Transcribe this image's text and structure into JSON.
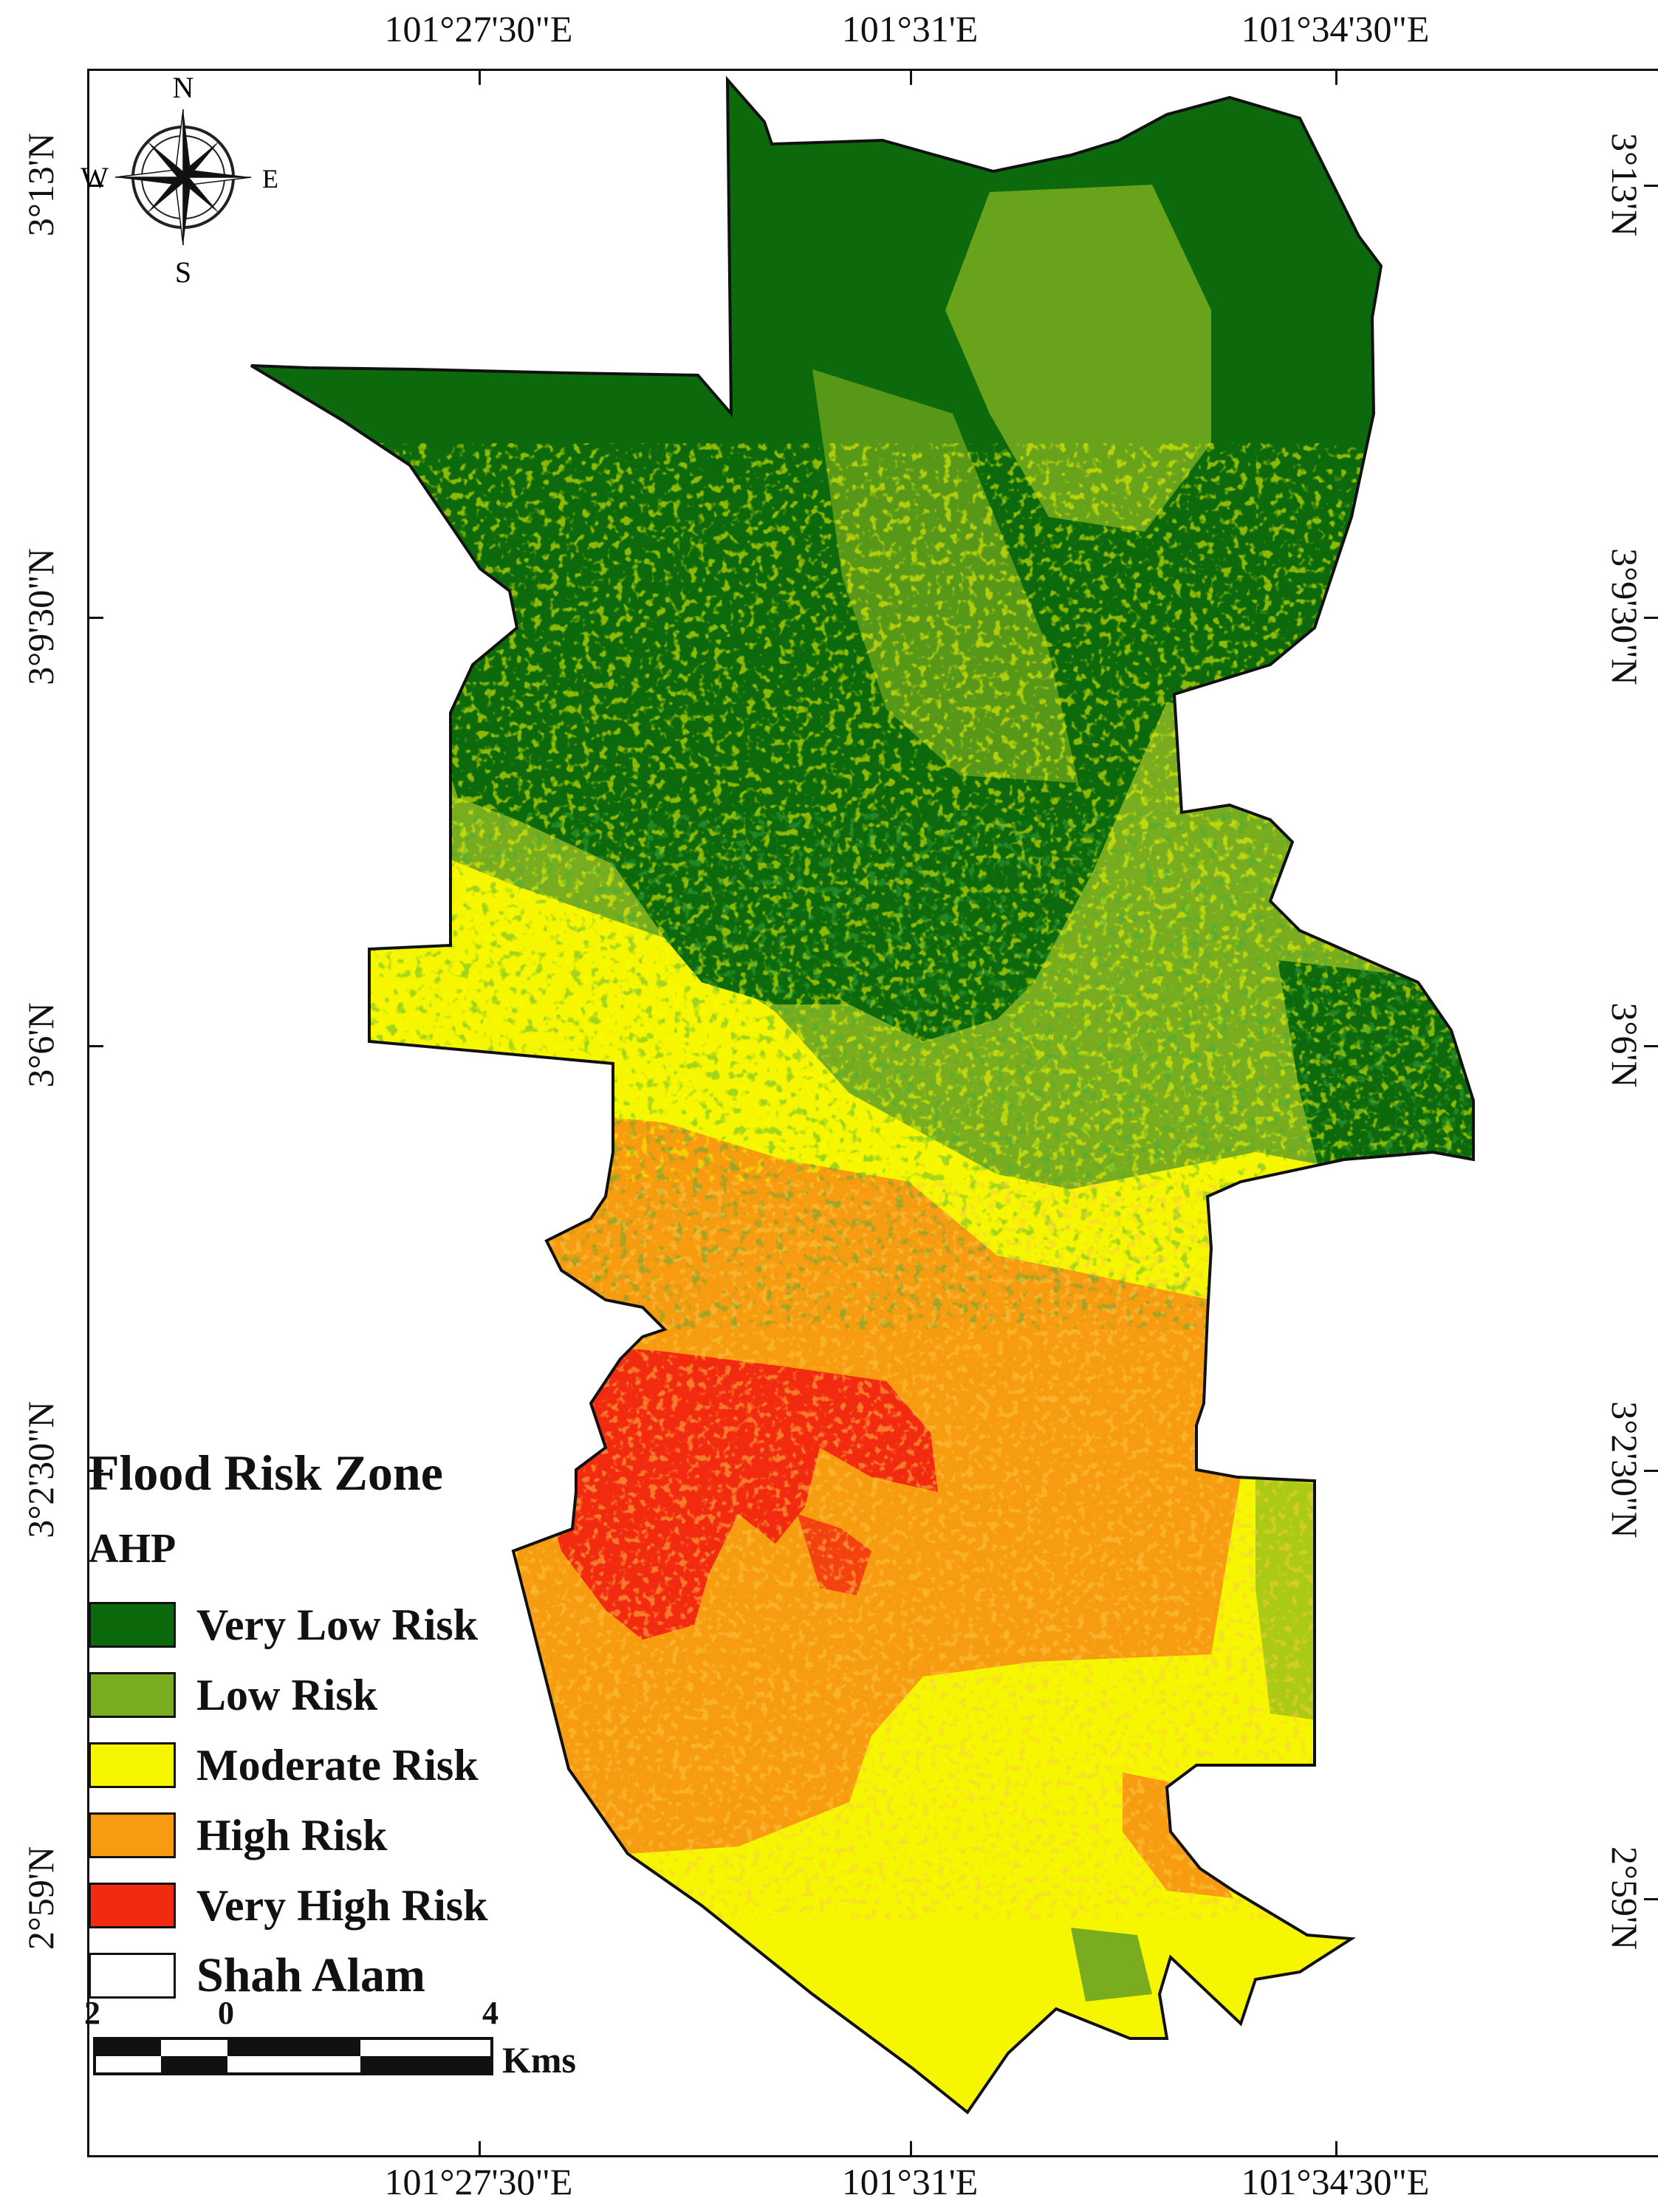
{
  "map": {
    "lon_labels": [
      "101°27'30\"E",
      "101°31'E",
      "101°34'30\"E"
    ],
    "lat_labels": [
      "3°13'N",
      "3°9'30\"N",
      "3°6'N",
      "3°2'30\"N",
      "2°59'N"
    ],
    "compass": {
      "n": "N",
      "s": "S",
      "e": "E",
      "w": "W"
    },
    "colors": {
      "very_low": "#0c6a0c",
      "low": "#79ad1f",
      "moderate": "#f6f600",
      "high": "#f79b10",
      "very_high": "#f22b10",
      "boundary": "#ffffff"
    }
  },
  "legend": {
    "title": "Flood Risk Zone",
    "subtitle": "AHP",
    "items": [
      {
        "label": "Very Low Risk",
        "color": "#0c6a0c"
      },
      {
        "label": "Low Risk",
        "color": "#79ad1f"
      },
      {
        "label": "Moderate Risk",
        "color": "#f6f600"
      },
      {
        "label": "High Risk",
        "color": "#f79b10"
      },
      {
        "label": "Very High Risk",
        "color": "#f22b10"
      },
      {
        "label": "Shah Alam",
        "color": "#ffffff"
      }
    ]
  },
  "scale_bar": {
    "labels": [
      "2",
      "0",
      "4"
    ],
    "unit": "Kms"
  }
}
